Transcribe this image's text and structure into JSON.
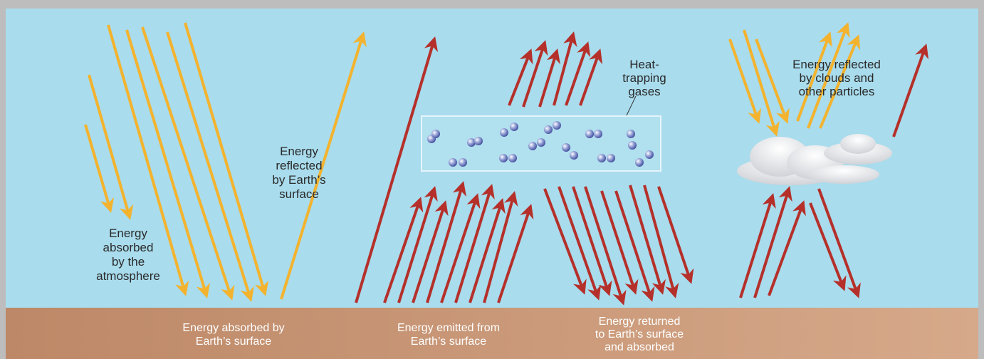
{
  "labels": {
    "atmosphere_absorbed": [
      "Energy",
      "absorbed",
      "by the",
      "atmosphere"
    ],
    "surface_reflected": [
      "Energy",
      "reflected",
      "by Earth’s",
      "surface"
    ],
    "gases": [
      "Heat-",
      "trapping",
      "gases"
    ],
    "clouds_reflected": [
      "Energy reflected",
      "by clouds and",
      "other particles"
    ]
  },
  "ground": {
    "surface_absorbed": [
      "Energy absorbed by",
      "Earth’s surface"
    ],
    "surface_emitted": [
      "Energy emitted from",
      "Earth’s surface"
    ],
    "returned": [
      "Energy returned",
      "to Earth’s surface",
      "and absorbed"
    ]
  }
}
